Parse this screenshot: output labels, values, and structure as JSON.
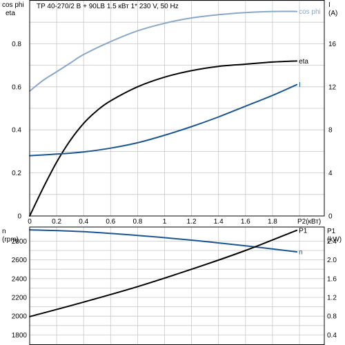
{
  "header": {
    "title": "TP 40-270/2 B + 90LB    1.5 кВт   1* 230 V, 50 Hz"
  },
  "colors": {
    "cos_phi": "#8aa7c6",
    "eta": "#000000",
    "current": "#1b5591",
    "speed": "#1b5591",
    "p1": "#000000",
    "grid": "#c8c8c8"
  },
  "chart_data": [
    {
      "type": "line",
      "x_label": "P2(кВт)",
      "x_ticks": [
        "0",
        "0.2",
        "0.4",
        "0.6",
        "0.8",
        "1",
        "1.2",
        "1.4",
        "1.6",
        "1.8"
      ],
      "xlim": [
        0,
        2.0
      ],
      "left_axis": {
        "labels": [
          "cos phi",
          "eta"
        ],
        "ticks": [
          "0",
          "0.2",
          "0.4",
          "0.6",
          "0.8"
        ],
        "ylim": [
          0,
          1.0
        ]
      },
      "right_axis": {
        "labels": [
          "I",
          "(A)"
        ],
        "ticks": [
          "0",
          "4",
          "8",
          "12",
          "16"
        ],
        "ylim": [
          0,
          20
        ]
      },
      "grid": true,
      "series": [
        {
          "name": "cos phi",
          "axis": "left",
          "x": [
            0,
            0.1,
            0.2,
            0.3,
            0.4,
            0.6,
            0.8,
            1.0,
            1.2,
            1.4,
            1.6,
            1.8,
            1.98
          ],
          "y": [
            0.58,
            0.63,
            0.67,
            0.71,
            0.75,
            0.81,
            0.86,
            0.895,
            0.92,
            0.935,
            0.945,
            0.95,
            0.95
          ]
        },
        {
          "name": "eta",
          "axis": "left",
          "x": [
            0,
            0.1,
            0.2,
            0.3,
            0.4,
            0.5,
            0.6,
            0.8,
            1.0,
            1.2,
            1.4,
            1.6,
            1.8,
            1.98
          ],
          "y": [
            0,
            0.13,
            0.25,
            0.35,
            0.43,
            0.49,
            0.535,
            0.6,
            0.645,
            0.675,
            0.695,
            0.705,
            0.715,
            0.72
          ]
        },
        {
          "name": "I",
          "axis": "right",
          "x": [
            0,
            0.2,
            0.4,
            0.6,
            0.8,
            1.0,
            1.2,
            1.4,
            1.6,
            1.8,
            1.98
          ],
          "y": [
            5.6,
            5.75,
            5.95,
            6.3,
            6.8,
            7.5,
            8.3,
            9.2,
            10.2,
            11.2,
            12.2
          ]
        }
      ]
    },
    {
      "type": "line",
      "left_axis": {
        "labels": [
          "n",
          "(rpm)"
        ],
        "ticks": [
          "1800",
          "2000",
          "2200",
          "2400",
          "2600",
          "2800"
        ],
        "ylim": [
          1700,
          2950
        ]
      },
      "right_axis": {
        "labels": [
          "P1",
          "(kW)"
        ],
        "ticks": [
          "0.4",
          "0.8",
          "1.2",
          "1.6",
          "2.0",
          "2.4"
        ],
        "ylim": [
          0.2,
          2.7
        ]
      },
      "xlim": [
        0,
        2.0
      ],
      "grid": true,
      "series": [
        {
          "name": "n",
          "axis": "left",
          "x": [
            0,
            0.4,
            0.8,
            1.2,
            1.6,
            1.98
          ],
          "y": [
            2920,
            2900,
            2860,
            2810,
            2750,
            2685
          ]
        },
        {
          "name": "P1",
          "axis": "right",
          "x": [
            0,
            0.4,
            0.8,
            1.2,
            1.6,
            1.98
          ],
          "y": [
            0.79,
            1.1,
            1.43,
            1.8,
            2.2,
            2.63
          ]
        }
      ]
    }
  ]
}
